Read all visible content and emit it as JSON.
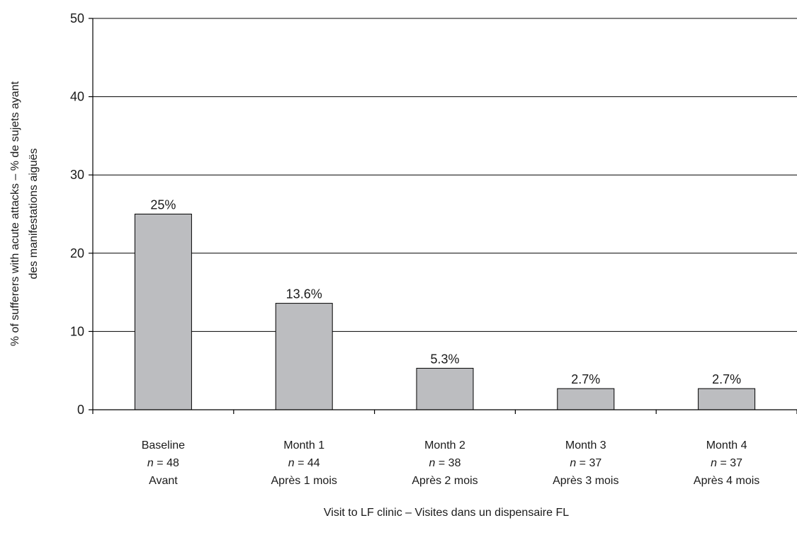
{
  "chart_data": {
    "type": "bar",
    "title": "",
    "xlabel": "Visit to LF clinic – Visites dans un dispensaire FL",
    "ylabel": "% of sufferers with acute attacks – % de sujets ayant des manifestations aiguës",
    "ylabel_lines": [
      "% of sufferers with acute attacks – % de sujets ayant",
      "des manifestations aiguës"
    ],
    "ylim": [
      0,
      50
    ],
    "yticks": [
      0,
      10,
      20,
      30,
      40,
      50
    ],
    "grid": true,
    "categories": [
      {
        "label": "Baseline",
        "n": "n = 48",
        "n_letter": "n",
        "n_rest": " = 48",
        "sublabel": "Avant"
      },
      {
        "label": "Month 1",
        "n": "n = 44",
        "n_letter": "n",
        "n_rest": " = 44",
        "sublabel": "Après 1 mois"
      },
      {
        "label": "Month 2",
        "n": "n = 38",
        "n_letter": "n",
        "n_rest": " = 38",
        "sublabel": "Après 2 mois"
      },
      {
        "label": "Month 3",
        "n": "n = 37",
        "n_letter": "n",
        "n_rest": " = 37",
        "sublabel": "Après 3 mois"
      },
      {
        "label": "Month 4",
        "n": "n = 37",
        "n_letter": "n",
        "n_rest": " = 37",
        "sublabel": "Après 4 mois"
      }
    ],
    "values": [
      25,
      13.6,
      5.3,
      2.7,
      2.7
    ],
    "data_labels": [
      "25%",
      "13.6%",
      "5.3%",
      "2.7%",
      "2.7%"
    ],
    "colors": {
      "bar": "#bcbdc0",
      "outline": "#000000"
    }
  }
}
